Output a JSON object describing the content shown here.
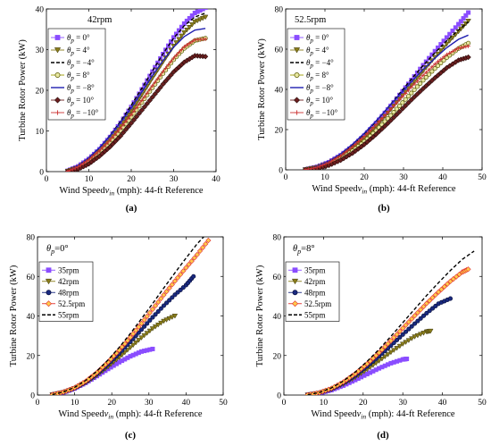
{
  "chart_data": [
    {
      "panel": "(a)",
      "type": "line",
      "annotation": "42rpm",
      "xlabel": "Wind Speedv_in (mph): 44-ft Reference",
      "ylabel": "Turbine Rotor Power (kW)",
      "xlim": [
        0,
        40
      ],
      "ylim": [
        0,
        40
      ],
      "xticks": [
        0,
        10,
        20,
        30,
        40
      ],
      "yticks": [
        0,
        10,
        20,
        30,
        40
      ],
      "legend_position": "left",
      "x": [
        5,
        7.5,
        10,
        12.5,
        15,
        17.5,
        20,
        22.5,
        25,
        27.5,
        30,
        32.5,
        35,
        37.5
      ],
      "series": [
        {
          "name": "θp = 0°",
          "color": "#8a4dff",
          "marker": "square",
          "dash": "solid",
          "values": [
            0.2,
            1.3,
            3.1,
            5.5,
            8.5,
            12.0,
            15.9,
            20.2,
            24.6,
            28.9,
            33.0,
            36.4,
            39.0,
            40.3
          ]
        },
        {
          "name": "θp = 4°",
          "color": "#8a7d1a",
          "marker": "triangle-down",
          "dash": "solid",
          "values": [
            0.1,
            1.0,
            2.7,
            5.0,
            7.9,
            11.2,
            14.9,
            18.9,
            23.0,
            27.0,
            30.9,
            34.2,
            36.8,
            38.0
          ]
        },
        {
          "name": "θp = −4°",
          "color": "#000000",
          "marker": "none",
          "dash": "dashed",
          "values": [
            0.2,
            1.4,
            3.3,
            5.8,
            8.9,
            12.4,
            16.3,
            20.5,
            24.8,
            29.0,
            32.8,
            35.9,
            38.0,
            39.0
          ]
        },
        {
          "name": "θp = 8°",
          "color": "#9a9a00",
          "marker": "circle",
          "dash": "solid",
          "values": [
            0.0,
            0.8,
            2.3,
            4.4,
            7.0,
            10.0,
            13.4,
            17.0,
            20.6,
            24.1,
            27.5,
            30.3,
            32.2,
            32.8
          ]
        },
        {
          "name": "θp = −8°",
          "color": "#1f1fb0",
          "marker": "none",
          "dash": "solid",
          "values": [
            0.2,
            1.5,
            3.4,
            5.9,
            8.8,
            12.1,
            15.7,
            19.6,
            23.6,
            27.3,
            30.6,
            33.2,
            34.8,
            35.2
          ]
        },
        {
          "name": "θp = 10°",
          "color": "#6b1f1f",
          "marker": "diamond",
          "dash": "solid",
          "values": [
            0.0,
            0.6,
            1.9,
            3.8,
            6.1,
            8.8,
            11.9,
            15.1,
            18.3,
            21.5,
            24.5,
            26.9,
            28.5,
            28.3
          ]
        },
        {
          "name": "θp = −10°",
          "color": "#cc3333",
          "marker": "plus",
          "dash": "solid",
          "values": [
            0.1,
            1.2,
            2.9,
            5.1,
            7.7,
            10.7,
            14.0,
            17.5,
            21.1,
            24.6,
            27.9,
            30.7,
            32.4,
            32.6
          ]
        }
      ]
    },
    {
      "panel": "(b)",
      "type": "line",
      "annotation": "52.5rpm",
      "xlabel": "Wind Speedv_in (mph): 44-ft Reference",
      "ylabel": "Turbine Rotor Power (kW)",
      "xlim": [
        0,
        50
      ],
      "ylim": [
        0,
        80
      ],
      "xticks": [
        0,
        10,
        20,
        30,
        40,
        50
      ],
      "yticks": [
        0,
        20,
        40,
        60,
        80
      ],
      "legend_position": "left",
      "x": [
        5,
        8,
        11,
        14,
        17,
        20,
        23,
        26,
        29,
        32,
        35,
        38,
        41,
        44,
        46.5
      ],
      "series": [
        {
          "name": "θp = 0°",
          "color": "#8a4dff",
          "marker": "square",
          "dash": "solid",
          "values": [
            0.2,
            1.5,
            3.8,
            7.2,
            11.6,
            17.0,
            23.2,
            30.0,
            37.2,
            44.6,
            52.0,
            59.0,
            65.8,
            72.4,
            78.2
          ]
        },
        {
          "name": "θp = 4°",
          "color": "#8a7d1a",
          "marker": "triangle-down",
          "dash": "solid",
          "values": [
            0.1,
            1.2,
            3.3,
            6.5,
            10.7,
            15.8,
            21.7,
            28.3,
            35.2,
            42.2,
            49.2,
            56.0,
            62.6,
            68.8,
            74.0
          ]
        },
        {
          "name": "θp = −4°",
          "color": "#000000",
          "marker": "none",
          "dash": "dashed",
          "values": [
            0.2,
            1.6,
            4.1,
            7.7,
            12.3,
            17.8,
            24.1,
            30.9,
            38.0,
            45.1,
            51.9,
            58.2,
            64.2,
            69.5,
            73.5
          ]
        },
        {
          "name": "θp = 8°",
          "color": "#9a9a00",
          "marker": "circle",
          "dash": "solid",
          "values": [
            0.0,
            0.9,
            2.7,
            5.6,
            9.4,
            14.1,
            19.5,
            25.5,
            31.8,
            38.2,
            44.5,
            50.4,
            55.8,
            60.3,
            63.0
          ]
        },
        {
          "name": "θp = −8°",
          "color": "#1f1fb0",
          "marker": "none",
          "dash": "solid",
          "values": [
            0.2,
            1.7,
            4.3,
            8.0,
            12.7,
            18.2,
            24.3,
            30.8,
            37.4,
            43.8,
            49.9,
            55.5,
            60.7,
            64.9,
            67.0
          ]
        },
        {
          "name": "θp = 10°",
          "color": "#6b1f1f",
          "marker": "diamond",
          "dash": "solid",
          "values": [
            0.0,
            0.6,
            2.2,
            4.8,
            8.3,
            12.6,
            17.6,
            23.1,
            28.9,
            34.8,
            40.4,
            45.7,
            50.7,
            54.5,
            56.0
          ]
        },
        {
          "name": "θp = −10°",
          "color": "#cc3333",
          "marker": "plus",
          "dash": "solid",
          "values": [
            0.1,
            1.3,
            3.6,
            7.0,
            11.4,
            16.6,
            22.4,
            28.6,
            34.9,
            41.1,
            47.0,
            52.6,
            57.3,
            60.5,
            61.5
          ]
        }
      ]
    },
    {
      "panel": "(c)",
      "type": "line",
      "annotation": "θp=0°",
      "xlabel": "Wind Speedv_in (mph): 44-ft Reference",
      "ylabel": "Turbine Rotor Power (kW)",
      "xlim": [
        0,
        50
      ],
      "ylim": [
        0,
        80
      ],
      "xticks": [
        0,
        10,
        20,
        30,
        40,
        50
      ],
      "yticks": [
        0,
        20,
        40,
        60,
        80
      ],
      "legend_position": "left",
      "series": [
        {
          "name": "35rpm",
          "color": "#8a4dff",
          "marker": "square",
          "dash": "solid",
          "x": [
            4,
            7,
            10,
            13,
            16,
            19,
            22,
            25,
            28,
            31
          ],
          "values": [
            0.2,
            1.3,
            3.3,
            6.2,
            9.6,
            13.2,
            16.6,
            19.6,
            22.0,
            23.3
          ]
        },
        {
          "name": "42rpm",
          "color": "#8a7d1a",
          "marker": "triangle-down",
          "dash": "solid",
          "x": [
            4,
            7,
            10,
            13,
            16,
            19,
            22,
            25,
            28,
            31,
            34,
            37
          ],
          "values": [
            0.2,
            1.3,
            3.3,
            6.2,
            9.9,
            14.3,
            19.0,
            24.0,
            29.0,
            33.6,
            37.4,
            40.0
          ]
        },
        {
          "name": "48rpm",
          "color": "#1a2a80",
          "marker": "circle",
          "dash": "solid",
          "x": [
            4,
            7,
            10,
            13,
            16,
            19,
            22,
            25,
            28,
            31,
            34,
            37,
            40,
            42
          ],
          "values": [
            0.2,
            1.4,
            3.5,
            6.6,
            10.7,
            15.6,
            21.0,
            26.9,
            33.1,
            39.3,
            45.2,
            50.7,
            55.6,
            60.0
          ]
        },
        {
          "name": "52.5rpm",
          "color": "#ffa500",
          "marker": "diamond",
          "dash": "solid",
          "x": [
            4,
            7,
            10,
            13,
            16,
            19,
            22,
            25,
            28,
            31,
            34,
            37,
            40,
            43,
            46
          ],
          "values": [
            0.2,
            1.5,
            3.7,
            7.0,
            11.4,
            16.7,
            22.7,
            29.2,
            36.2,
            43.4,
            50.6,
            57.6,
            64.4,
            71.0,
            78.2
          ]
        },
        {
          "name": "55rpm",
          "color": "#000000",
          "marker": "none",
          "dash": "dashed",
          "x": [
            4,
            7,
            10,
            13,
            16,
            19,
            22,
            25,
            28,
            31,
            34,
            37,
            40,
            43,
            45
          ],
          "values": [
            0.2,
            1.6,
            3.9,
            7.4,
            12.1,
            17.7,
            24.1,
            31.1,
            38.6,
            46.3,
            54.1,
            61.8,
            69.3,
            76.5,
            80.5
          ]
        }
      ]
    },
    {
      "panel": "(d)",
      "type": "line",
      "annotation": "θp=8°",
      "xlabel": "Wind Speedv_in (mph): 44-ft Reference",
      "ylabel": "Turbine Rotor Power (kW)",
      "xlim": [
        0,
        50
      ],
      "ylim": [
        0,
        80
      ],
      "xticks": [
        0,
        10,
        20,
        30,
        40,
        50
      ],
      "yticks": [
        0,
        20,
        40,
        60,
        80
      ],
      "legend_position": "left",
      "series": [
        {
          "name": "35rpm",
          "color": "#8a4dff",
          "marker": "square",
          "dash": "solid",
          "x": [
            6,
            9,
            12,
            15,
            18,
            21,
            24,
            27,
            30,
            31
          ],
          "values": [
            0.1,
            0.9,
            2.5,
            4.8,
            7.6,
            10.6,
            13.5,
            16.1,
            18.0,
            18.3
          ]
        },
        {
          "name": "42rpm",
          "color": "#8a7d1a",
          "marker": "triangle-down",
          "dash": "solid",
          "x": [
            6,
            9,
            12,
            15,
            18,
            21,
            24,
            27,
            30,
            33,
            36,
            37
          ],
          "values": [
            0.1,
            1.0,
            2.8,
            5.5,
            8.9,
            12.9,
            17.2,
            21.6,
            25.8,
            29.5,
            32.0,
            32.4
          ]
        },
        {
          "name": "48rpm",
          "color": "#1a2a80",
          "marker": "circle",
          "dash": "solid",
          "x": [
            6,
            9,
            12,
            15,
            18,
            21,
            24,
            27,
            30,
            33,
            36,
            39,
            42
          ],
          "values": [
            0.1,
            1.1,
            3.1,
            6.1,
            9.9,
            14.5,
            19.6,
            25.0,
            30.6,
            36.1,
            41.4,
            46.2,
            48.8
          ]
        },
        {
          "name": "52.5rpm",
          "color": "#ffa500",
          "marker": "diamond",
          "dash": "solid",
          "x": [
            6,
            9,
            12,
            15,
            18,
            21,
            24,
            27,
            30,
            33,
            36,
            39,
            42,
            45,
            46.5
          ],
          "values": [
            0.1,
            1.2,
            3.4,
            6.6,
            10.8,
            15.8,
            21.4,
            27.5,
            33.8,
            40.1,
            46.3,
            52.1,
            57.5,
            62.2,
            63.6
          ]
        },
        {
          "name": "55rpm",
          "color": "#000000",
          "marker": "none",
          "dash": "dashed",
          "x": [
            6,
            9,
            12,
            15,
            18,
            21,
            24,
            27,
            30,
            33,
            36,
            39,
            42,
            45,
            48
          ],
          "values": [
            0.1,
            1.3,
            3.6,
            7.1,
            11.6,
            17.0,
            23.1,
            29.7,
            36.6,
            43.5,
            50.3,
            56.8,
            63.0,
            68.6,
            72.8
          ]
        }
      ]
    }
  ]
}
